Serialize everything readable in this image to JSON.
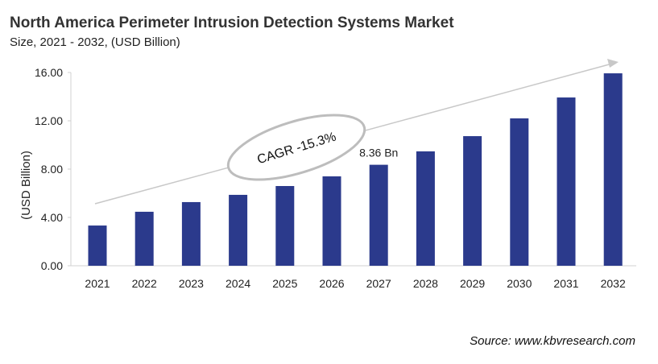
{
  "title": "North America Perimeter Intrusion  Detection Systems Market",
  "subtitle": "Size, 2021 - 2032, (USD Billion)",
  "source": "Source: www.kbvresearch.com",
  "colors": {
    "bar": "#2b3a8c",
    "arrow": "#c8c8c8",
    "ellipse": "#bdbdbd"
  },
  "chart_data": {
    "type": "bar",
    "categories": [
      "2021",
      "2022",
      "2023",
      "2024",
      "2025",
      "2026",
      "2027",
      "2028",
      "2029",
      "2030",
      "2031",
      "2032"
    ],
    "values": [
      3.33,
      4.47,
      5.27,
      5.87,
      6.6,
      7.4,
      8.36,
      9.47,
      10.73,
      12.2,
      13.93,
      15.93
    ],
    "ylabel": "(USD Billion)",
    "ylim": [
      0,
      16
    ],
    "yticks": [
      "0.00",
      "4.00",
      "8.00",
      "12.00",
      "16.00"
    ],
    "grid": false,
    "annotations": {
      "cagr": "CAGR -15.3%",
      "data_label": "8.36 Bn",
      "data_label_category": "2027"
    }
  }
}
